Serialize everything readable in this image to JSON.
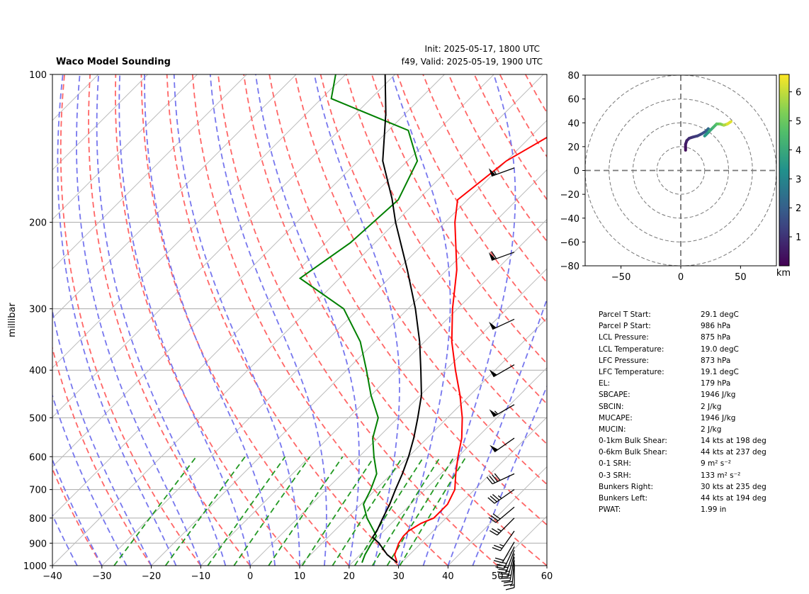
{
  "header": {
    "title": "Waco Model Sounding",
    "init": "Init: 2025-05-17, 1800 UTC",
    "valid": "f49, Valid: 2025-05-19, 1900 UTC"
  },
  "colors": {
    "temperature": "#ff0000",
    "dewpoint": "#008000",
    "parcel": "#000000",
    "dry_adiabat": "#ff6666",
    "moist_adiabat": "#7777ee",
    "mixing_ratio": "#229922",
    "isobar": "#aaaaaa",
    "isotherm": "#bbbbbb"
  },
  "chart_data": [
    {
      "type": "line",
      "name": "skew-t",
      "ylabel": "millibar",
      "xlim": [
        -40,
        60
      ],
      "ylim": [
        1000,
        100
      ],
      "x_ticks": [
        -40,
        -30,
        -20,
        -10,
        0,
        10,
        20,
        30,
        40,
        50,
        60
      ],
      "y_ticks": [
        100,
        200,
        300,
        400,
        500,
        600,
        700,
        800,
        900,
        1000
      ],
      "grid": true,
      "series": [
        {
          "key": "temperature",
          "points": [
            [
              986,
              29.1
            ],
            [
              950,
              27
            ],
            [
              900,
              25.5
            ],
            [
              870,
              25
            ],
            [
              850,
              25
            ],
            [
              820,
              26
            ],
            [
              800,
              27.5
            ],
            [
              750,
              27.5
            ],
            [
              700,
              26
            ],
            [
              650,
              23
            ],
            [
              600,
              20
            ],
            [
              550,
              17
            ],
            [
              500,
              13
            ],
            [
              450,
              8
            ],
            [
              400,
              2
            ],
            [
              350,
              -4.5
            ],
            [
              300,
              -11
            ],
            [
              250,
              -18
            ],
            [
              200,
              -28
            ],
            [
              180,
              -32
            ],
            [
              150,
              -30
            ],
            [
              120,
              -23
            ],
            [
              100,
              -18
            ]
          ]
        },
        {
          "key": "dewpoint",
          "points": [
            [
              986,
              22
            ],
            [
              950,
              21
            ],
            [
              900,
              20
            ],
            [
              870,
              19.5
            ],
            [
              850,
              18
            ],
            [
              800,
              14
            ],
            [
              750,
              10.5
            ],
            [
              700,
              9
            ],
            [
              650,
              7
            ],
            [
              600,
              3
            ],
            [
              550,
              -1
            ],
            [
              500,
              -4
            ],
            [
              450,
              -10
            ],
            [
              400,
              -16
            ],
            [
              350,
              -23
            ],
            [
              300,
              -33
            ],
            [
              260,
              -48
            ],
            [
              220,
              -45
            ],
            [
              180,
              -44
            ],
            [
              150,
              -48
            ],
            [
              130,
              -56
            ],
            [
              112,
              -78
            ],
            [
              100,
              -82
            ]
          ]
        },
        {
          "key": "parcel",
          "points": [
            [
              986,
              29.1
            ],
            [
              950,
              25.5
            ],
            [
              900,
              21.5
            ],
            [
              875,
              19
            ],
            [
              850,
              18.6
            ],
            [
              800,
              17.2
            ],
            [
              750,
              15.8
            ],
            [
              700,
              14
            ],
            [
              650,
              12.2
            ],
            [
              600,
              10
            ],
            [
              550,
              7.3
            ],
            [
              500,
              4
            ],
            [
              450,
              0.2
            ],
            [
              400,
              -5
            ],
            [
              350,
              -11
            ],
            [
              300,
              -18.5
            ],
            [
              250,
              -28
            ],
            [
              200,
              -40
            ],
            [
              179,
              -45.5
            ],
            [
              150,
              -55
            ],
            [
              120,
              -64
            ],
            [
              100,
              -72
            ]
          ]
        }
      ],
      "wind_barbs": [
        {
          "p": 990,
          "speed": 15,
          "dir": 180
        },
        {
          "p": 975,
          "speed": 20,
          "dir": 185
        },
        {
          "p": 960,
          "speed": 25,
          "dir": 190
        },
        {
          "p": 945,
          "speed": 25,
          "dir": 195
        },
        {
          "p": 930,
          "speed": 25,
          "dir": 200
        },
        {
          "p": 915,
          "speed": 25,
          "dir": 205
        },
        {
          "p": 895,
          "speed": 20,
          "dir": 210
        },
        {
          "p": 850,
          "speed": 25,
          "dir": 215
        },
        {
          "p": 800,
          "speed": 25,
          "dir": 225
        },
        {
          "p": 760,
          "speed": 30,
          "dir": 230
        },
        {
          "p": 700,
          "speed": 35,
          "dir": 235
        },
        {
          "p": 650,
          "speed": 40,
          "dir": 245
        },
        {
          "p": 550,
          "speed": 50,
          "dir": 235
        },
        {
          "p": 470,
          "speed": 55,
          "dir": 240
        },
        {
          "p": 390,
          "speed": 50,
          "dir": 240
        },
        {
          "p": 315,
          "speed": 50,
          "dir": 245
        },
        {
          "p": 230,
          "speed": 60,
          "dir": 250
        },
        {
          "p": 155,
          "speed": 55,
          "dir": 250
        }
      ]
    },
    {
      "type": "scatter",
      "name": "hodograph",
      "xlim": [
        -80,
        80
      ],
      "ylim": [
        -80,
        80
      ],
      "x_ticks": [
        -50,
        0,
        50
      ],
      "y_ticks": [
        -80,
        -60,
        -40,
        -20,
        0,
        20,
        40,
        60,
        80
      ],
      "ring_radii": [
        20,
        40,
        60,
        80
      ],
      "colorbar_label": "km",
      "colorbar_ticks": [
        1,
        2,
        3,
        4,
        5,
        6
      ],
      "colorbar_range": [
        0,
        6.6
      ],
      "points": [
        [
          4,
          17,
          0.1
        ],
        [
          4,
          19,
          0.2
        ],
        [
          4,
          22,
          0.35
        ],
        [
          5,
          25,
          0.5
        ],
        [
          7,
          27,
          0.7
        ],
        [
          10,
          28,
          0.9
        ],
        [
          14,
          29,
          1.1
        ],
        [
          18,
          31,
          1.3
        ],
        [
          21,
          33,
          1.6
        ],
        [
          23,
          35,
          1.9
        ],
        [
          24,
          34,
          2.3
        ],
        [
          23,
          32,
          2.6
        ],
        [
          21,
          30,
          2.9
        ],
        [
          20,
          29,
          3.1
        ],
        [
          24,
          33,
          3.5
        ],
        [
          27,
          36,
          4.0
        ],
        [
          30,
          39,
          4.4
        ],
        [
          33,
          39,
          4.9
        ],
        [
          36,
          38,
          5.3
        ],
        [
          39,
          39,
          5.8
        ],
        [
          42,
          41,
          6.3
        ]
      ]
    }
  ],
  "params": [
    {
      "label": "Parcel T Start:",
      "value": "29.1 degC"
    },
    {
      "label": "Parcel P Start:",
      "value": "986 hPa"
    },
    {
      "label": "LCL Pressure:",
      "value": "875 hPa"
    },
    {
      "label": "LCL Temperature:",
      "value": "19.0 degC"
    },
    {
      "label": "LFC Pressure:",
      "value": "873 hPa"
    },
    {
      "label": "LFC Temperature:",
      "value": "19.1 degC"
    },
    {
      "label": "EL:",
      "value": "179 hPa"
    },
    {
      "label": "SBCAPE:",
      "value": "1946 J/kg"
    },
    {
      "label": "SBCIN:",
      "value": "2 J/kg"
    },
    {
      "label": "MUCAPE:",
      "value": "1946 J/kg"
    },
    {
      "label": "MUCIN:",
      "value": "2 J/kg"
    },
    {
      "label": "0-1km Bulk Shear:",
      "value": "14 kts at 198 deg"
    },
    {
      "label": "0-6km Bulk Shear:",
      "value": "44 kts at 237 deg"
    },
    {
      "label": "0-1 SRH:",
      "value": "9 m² s⁻²"
    },
    {
      "label": "0-3 SRH:",
      "value": "133 m² s⁻²"
    },
    {
      "label": "Bunkers Right:",
      "value": "30 kts at 235 deg"
    },
    {
      "label": "Bunkers Left:",
      "value": "44 kts at 194 deg"
    },
    {
      "label": "PWAT:",
      "value": "1.99 in"
    }
  ]
}
